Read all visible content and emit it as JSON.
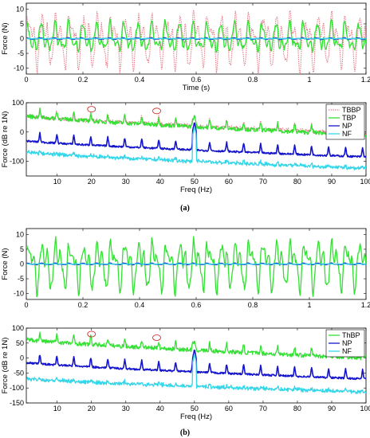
{
  "figure": {
    "caption_a": "(a)",
    "caption_b": "(b)"
  },
  "chart_data": [
    {
      "panel": "a-time",
      "type": "line",
      "xlabel": "Time (s)",
      "ylabel": "Force (N)",
      "xlim": [
        0,
        1.2
      ],
      "ylim": [
        -12,
        12
      ],
      "xticks": [
        "0",
        "0.2",
        "0.4",
        "0.6",
        "0.8",
        "1",
        "1.2"
      ],
      "yticks": [
        "10",
        "5",
        "0",
        "-5",
        "-10"
      ],
      "legend": [],
      "series": [
        {
          "name": "TBBP",
          "color": "#e87b8a",
          "style": "dotted",
          "amplitude": 11,
          "waveform": "bumps"
        },
        {
          "name": "TBP",
          "color": "#33e033",
          "style": "solid",
          "amplitude": 6,
          "waveform": "bumps"
        },
        {
          "name": "NP",
          "color": "#1515cc",
          "style": "solid",
          "amplitude": 0.3,
          "waveform": "bumps"
        },
        {
          "name": "NF",
          "color": "#33d6e8",
          "style": "solid",
          "amplitude": 0.1,
          "waveform": "bumps"
        }
      ]
    },
    {
      "panel": "a-spectrum",
      "type": "line",
      "xlabel": "Freq (Hz)",
      "ylabel": "Force (dB re 1N)",
      "xlim": [
        1,
        100
      ],
      "ylim": [
        -150,
        100
      ],
      "xticks": [
        "10",
        "20",
        "30",
        "40",
        "50",
        "60",
        "70",
        "80",
        "90",
        "100"
      ],
      "yticks": [
        "100",
        "0",
        "-100"
      ],
      "legend": [
        "TBBP",
        "TBP",
        "NP",
        "NF"
      ],
      "annotations": [
        {
          "shape": "ellipse",
          "x": 20,
          "y": 78
        },
        {
          "shape": "ellipse",
          "x": 39,
          "y": 72
        }
      ],
      "series": [
        {
          "name": "TBBP",
          "color": "#e87b8a",
          "style": "dotted",
          "start_db": 55,
          "end_db": -5,
          "peak_db": 60,
          "noise": "high"
        },
        {
          "name": "TBP",
          "color": "#33e033",
          "style": "solid",
          "start_db": 55,
          "end_db": -10,
          "peak_db": 60,
          "noise": "high"
        },
        {
          "name": "NP",
          "color": "#1515cc",
          "style": "solid",
          "start_db": -30,
          "end_db": -85,
          "peak_db": 35,
          "noise": "mid"
        },
        {
          "name": "NF",
          "color": "#33d6e8",
          "style": "solid",
          "start_db": -65,
          "end_db": -120,
          "peak_db": 20,
          "noise": "low"
        }
      ]
    },
    {
      "panel": "b-time",
      "type": "line",
      "xlabel": "",
      "ylabel": "Force (N)",
      "xlim": [
        0,
        1.2
      ],
      "ylim": [
        -12,
        12
      ],
      "xticks": [
        "0",
        "0.2",
        "0.4",
        "0.6",
        "0.8",
        "1",
        "1.2"
      ],
      "yticks": [
        "10",
        "5",
        "0",
        "-5",
        "-10"
      ],
      "legend": [],
      "series": [
        {
          "name": "ThBP",
          "color": "#33e033",
          "style": "solid",
          "amplitude": 10,
          "waveform": "bumps"
        },
        {
          "name": "NP",
          "color": "#1515cc",
          "style": "solid",
          "amplitude": 0.3,
          "waveform": "bumps"
        },
        {
          "name": "NF",
          "color": "#33d6e8",
          "style": "solid",
          "amplitude": 0.1,
          "waveform": "bumps"
        }
      ]
    },
    {
      "panel": "b-spectrum",
      "type": "line",
      "xlabel": "Freq (Hz)",
      "ylabel": "Force (dB re 1N)",
      "xlim": [
        1,
        100
      ],
      "ylim": [
        -150,
        100
      ],
      "xticks": [
        "10",
        "20",
        "30",
        "40",
        "50",
        "60",
        "70",
        "80",
        "90",
        "100"
      ],
      "yticks": [
        "100",
        "50",
        "0",
        "-50",
        "-100",
        "-150"
      ],
      "legend": [
        "ThBP",
        "NP",
        "NF"
      ],
      "annotations": [
        {
          "shape": "ellipse",
          "x": 20,
          "y": 80
        },
        {
          "shape": "ellipse",
          "x": 39,
          "y": 68
        }
      ],
      "series": [
        {
          "name": "ThBP",
          "color": "#33e033",
          "style": "solid",
          "start_db": 62,
          "end_db": 0,
          "peak_db": 60,
          "noise": "high"
        },
        {
          "name": "NP",
          "color": "#1515cc",
          "style": "solid",
          "start_db": -15,
          "end_db": -70,
          "peak_db": 30,
          "noise": "mid"
        },
        {
          "name": "NF",
          "color": "#33d6e8",
          "style": "solid",
          "start_db": -65,
          "end_db": -110,
          "peak_db": 15,
          "noise": "low"
        }
      ]
    }
  ]
}
